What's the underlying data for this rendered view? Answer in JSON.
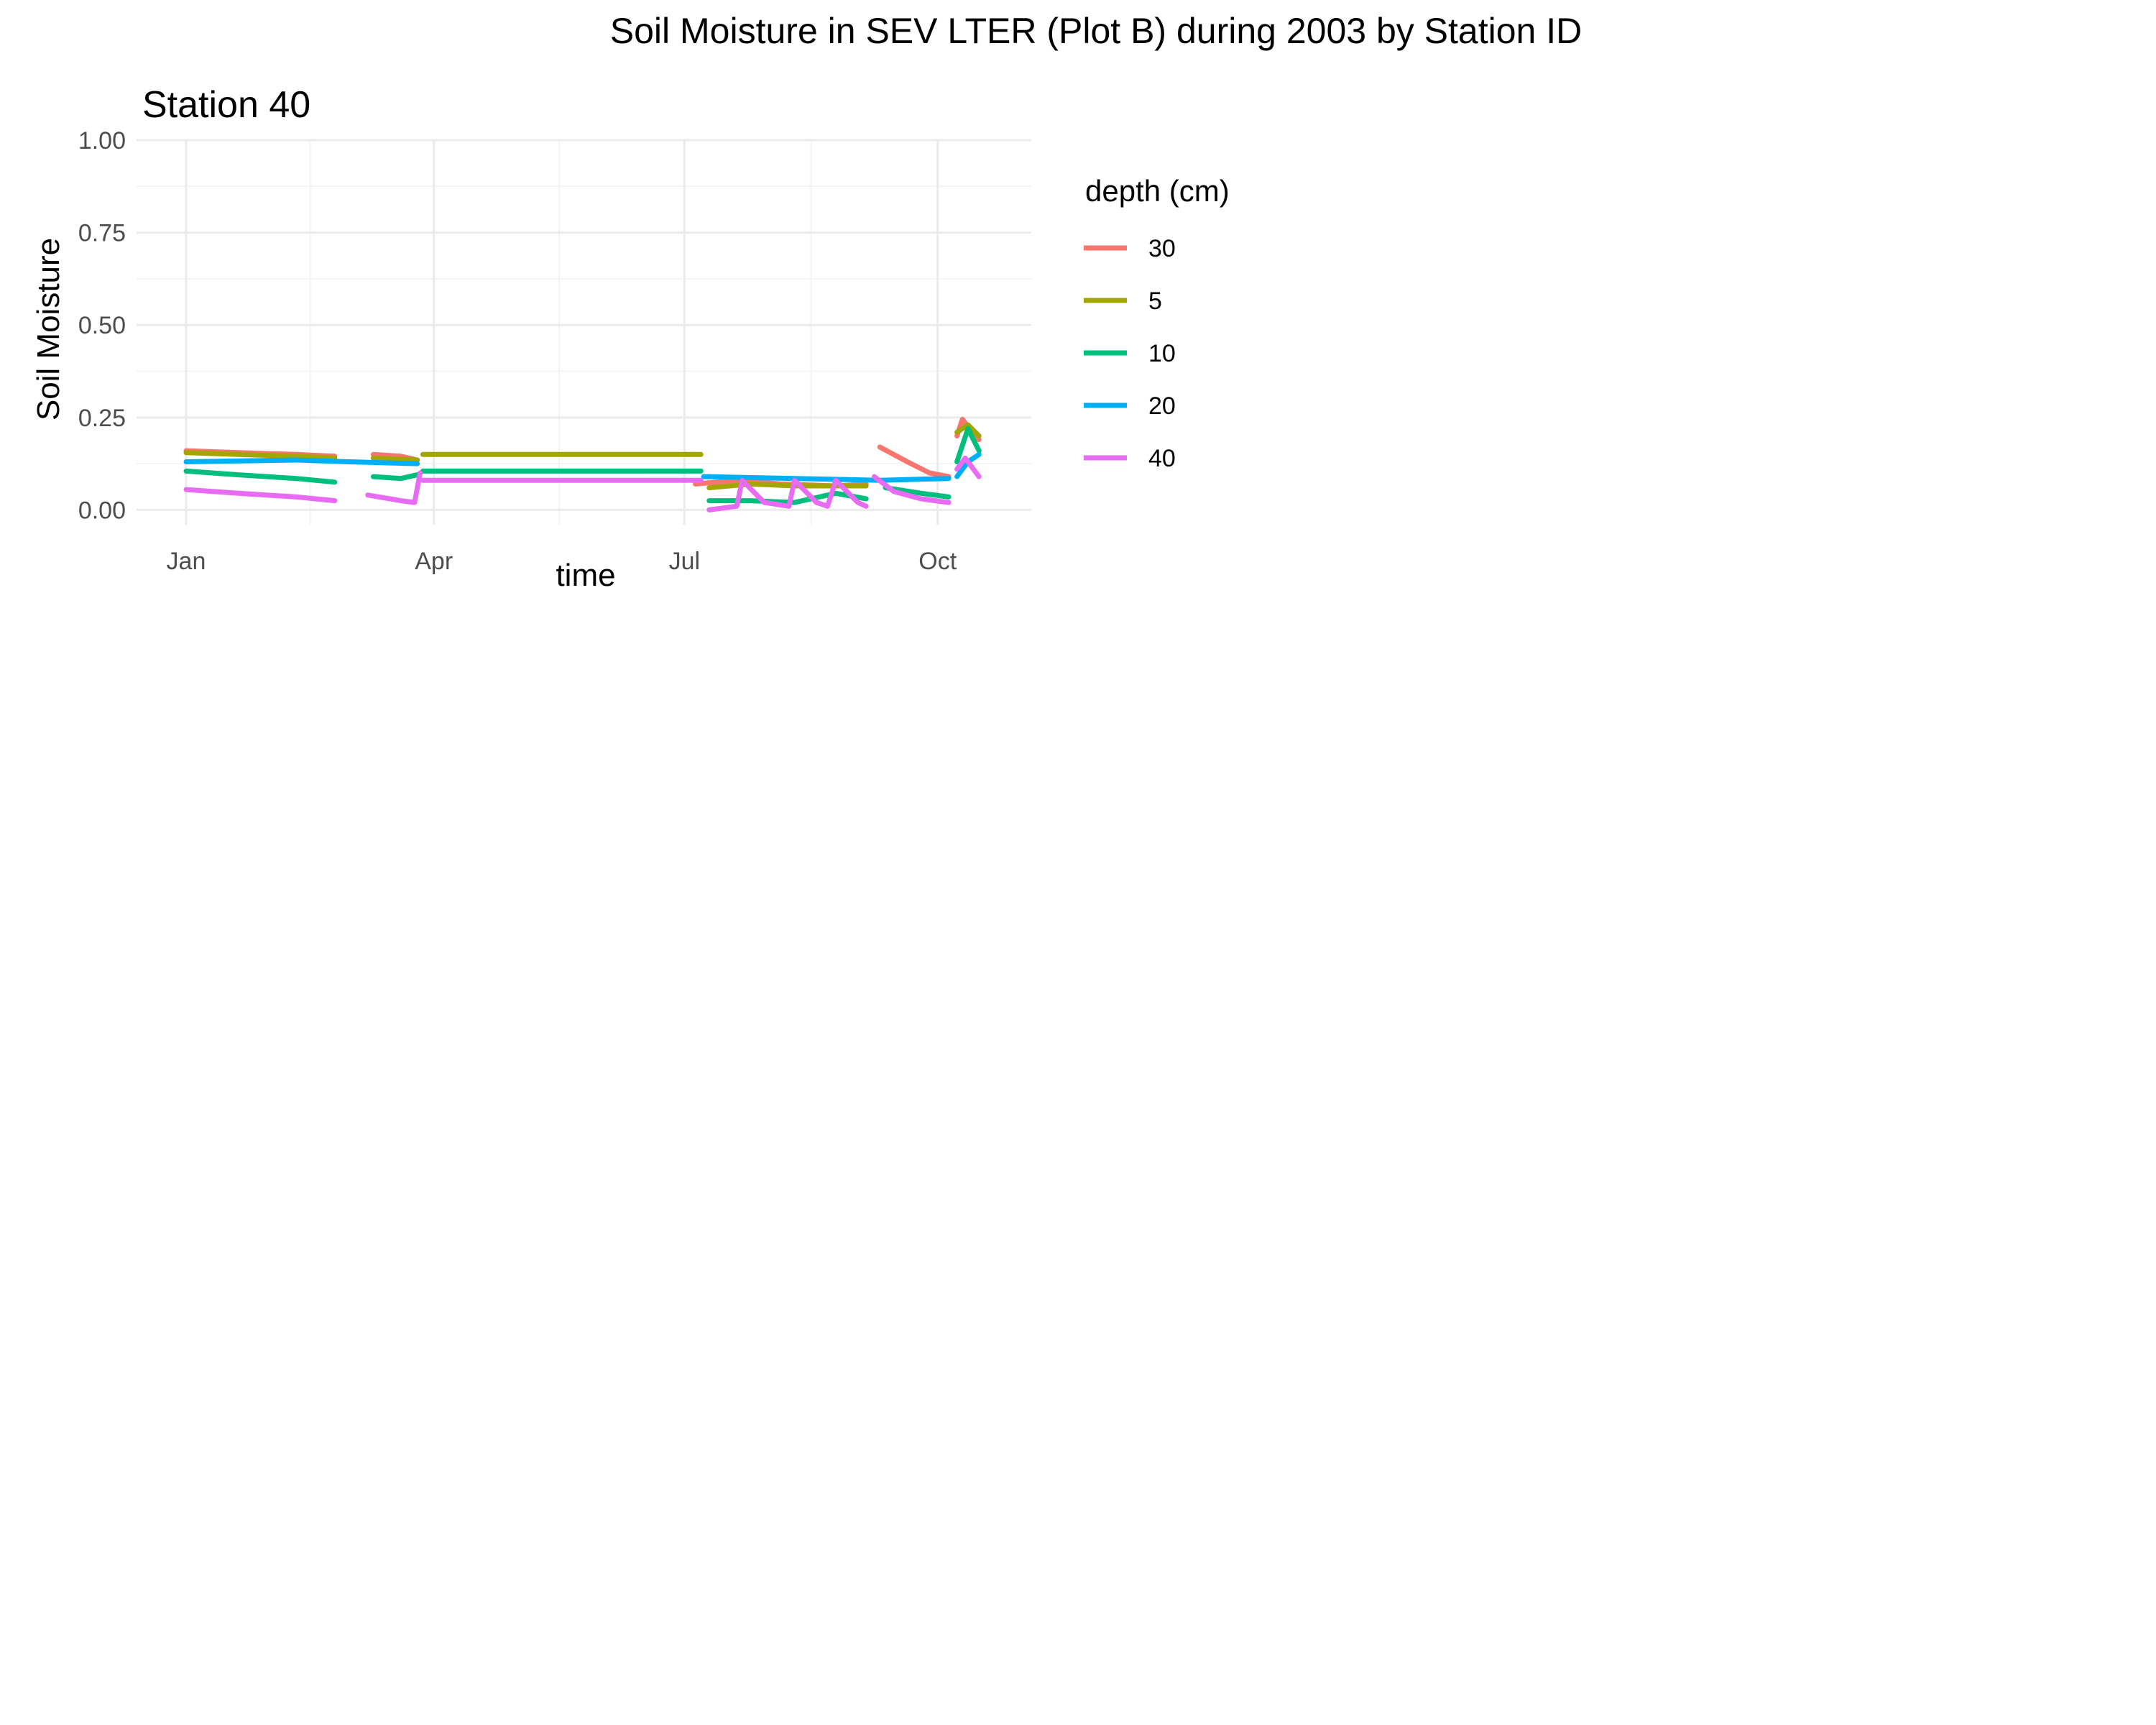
{
  "chart_data": {
    "type": "line",
    "title": "Soil Moisture in SEV LTER (Plot B) during 2003 by Station ID",
    "facet_label": "Station  40",
    "xlabel": "time",
    "ylabel": "Soil Moisture",
    "x_ticks": [
      "Jan",
      "Apr",
      "Jul",
      "Oct"
    ],
    "x_tick_dates": [
      "2003-01-01",
      "2003-04-01",
      "2003-07-01",
      "2003-10-01"
    ],
    "xlim": [
      "2002-12-14",
      "2003-11-04"
    ],
    "y_ticks": [
      "0.00",
      "0.25",
      "0.50",
      "0.75",
      "1.00"
    ],
    "ylim": [
      -0.04,
      1.0
    ],
    "grid": true,
    "legend": {
      "title": "depth (cm)",
      "position": "right"
    },
    "series": [
      {
        "name": "30",
        "color": "#F8766D",
        "segments": [
          [
            [
              "2003-01-01",
              0.16
            ],
            [
              "2003-01-20",
              0.155
            ],
            [
              "2003-02-10",
              0.15
            ],
            [
              "2003-02-24",
              0.145
            ]
          ],
          [
            [
              "2003-03-10",
              0.15
            ],
            [
              "2003-03-20",
              0.145
            ],
            [
              "2003-03-26",
              0.135
            ]
          ],
          [
            [
              "2003-07-05",
              0.07
            ],
            [
              "2003-07-20",
              0.08
            ],
            [
              "2003-08-05",
              0.07
            ],
            [
              "2003-08-25",
              0.065
            ],
            [
              "2003-09-05",
              0.07
            ]
          ],
          [
            [
              "2003-09-10",
              0.17
            ],
            [
              "2003-09-20",
              0.13
            ],
            [
              "2003-09-28",
              0.1
            ],
            [
              "2003-10-05",
              0.09
            ]
          ],
          [
            [
              "2003-10-08",
              0.2
            ],
            [
              "2003-10-10",
              0.245
            ],
            [
              "2003-10-13",
              0.215
            ],
            [
              "2003-10-16",
              0.19
            ]
          ]
        ]
      },
      {
        "name": "5",
        "color": "#A3A500",
        "segments": [
          [
            [
              "2003-01-01",
              0.155
            ],
            [
              "2003-01-20",
              0.15
            ],
            [
              "2003-02-10",
              0.145
            ],
            [
              "2003-02-24",
              0.14
            ]
          ],
          [
            [
              "2003-03-10",
              0.14
            ],
            [
              "2003-03-26",
              0.135
            ]
          ],
          [
            [
              "2003-03-28",
              0.15
            ],
            [
              "2003-07-07",
              0.15
            ]
          ],
          [
            [
              "2003-07-10",
              0.06
            ],
            [
              "2003-07-25",
              0.07
            ],
            [
              "2003-08-10",
              0.065
            ],
            [
              "2003-09-05",
              0.065
            ]
          ],
          [
            [
              "2003-10-08",
              0.21
            ],
            [
              "2003-10-12",
              0.23
            ],
            [
              "2003-10-16",
              0.2
            ]
          ]
        ]
      },
      {
        "name": "10",
        "color": "#00BF7D",
        "segments": [
          [
            [
              "2003-01-01",
              0.105
            ],
            [
              "2003-01-20",
              0.095
            ],
            [
              "2003-02-10",
              0.085
            ],
            [
              "2003-02-24",
              0.075
            ]
          ],
          [
            [
              "2003-03-10",
              0.09
            ],
            [
              "2003-03-20",
              0.085
            ],
            [
              "2003-03-26",
              0.095
            ]
          ],
          [
            [
              "2003-03-28",
              0.105
            ],
            [
              "2003-07-07",
              0.105
            ]
          ],
          [
            [
              "2003-07-10",
              0.025
            ],
            [
              "2003-07-25",
              0.025
            ],
            [
              "2003-08-10",
              0.02
            ],
            [
              "2003-08-25",
              0.045
            ],
            [
              "2003-09-05",
              0.03
            ]
          ],
          [
            [
              "2003-09-12",
              0.06
            ],
            [
              "2003-09-25",
              0.045
            ],
            [
              "2003-10-05",
              0.035
            ]
          ],
          [
            [
              "2003-10-08",
              0.13
            ],
            [
              "2003-10-12",
              0.22
            ],
            [
              "2003-10-16",
              0.16
            ]
          ]
        ]
      },
      {
        "name": "20",
        "color": "#00B0F6",
        "segments": [
          [
            [
              "2003-01-01",
              0.13
            ],
            [
              "2003-02-10",
              0.135
            ],
            [
              "2003-03-01",
              0.13
            ],
            [
              "2003-03-26",
              0.125
            ]
          ],
          [
            [
              "2003-07-08",
              0.09
            ],
            [
              "2003-08-10",
              0.085
            ],
            [
              "2003-09-10",
              0.08
            ],
            [
              "2003-10-05",
              0.085
            ]
          ],
          [
            [
              "2003-10-08",
              0.09
            ],
            [
              "2003-10-12",
              0.13
            ],
            [
              "2003-10-16",
              0.15
            ]
          ]
        ]
      },
      {
        "name": "40",
        "color": "#E76BF3",
        "segments": [
          [
            [
              "2003-01-01",
              0.055
            ],
            [
              "2003-01-20",
              0.045
            ],
            [
              "2003-02-10",
              0.035
            ],
            [
              "2003-02-24",
              0.025
            ]
          ],
          [
            [
              "2003-03-08",
              0.04
            ],
            [
              "2003-03-20",
              0.025
            ],
            [
              "2003-03-25",
              0.02
            ],
            [
              "2003-03-27",
              0.1
            ]
          ],
          [
            [
              "2003-03-28",
              0.08
            ],
            [
              "2003-07-07",
              0.08
            ]
          ],
          [
            [
              "2003-07-10",
              0.0
            ],
            [
              "2003-07-20",
              0.01
            ],
            [
              "2003-07-22",
              0.08
            ],
            [
              "2003-07-30",
              0.02
            ],
            [
              "2003-08-08",
              0.01
            ],
            [
              "2003-08-10",
              0.08
            ],
            [
              "2003-08-18",
              0.02
            ],
            [
              "2003-08-22",
              0.01
            ],
            [
              "2003-08-25",
              0.08
            ],
            [
              "2003-09-02",
              0.02
            ],
            [
              "2003-09-05",
              0.01
            ]
          ],
          [
            [
              "2003-09-08",
              0.09
            ],
            [
              "2003-09-15",
              0.05
            ],
            [
              "2003-09-25",
              0.03
            ],
            [
              "2003-10-05",
              0.02
            ]
          ],
          [
            [
              "2003-10-08",
              0.11
            ],
            [
              "2003-10-11",
              0.14
            ],
            [
              "2003-10-16",
              0.09
            ]
          ]
        ]
      }
    ]
  }
}
